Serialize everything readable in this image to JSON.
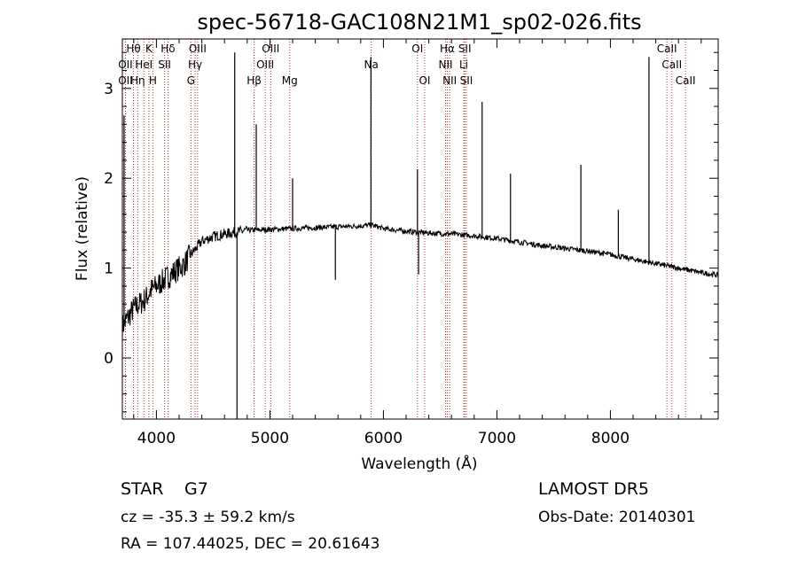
{
  "chart_data": {
    "type": "line",
    "title": "spec-56718-GAC108N21M1_sp02-026.fits",
    "xlabel": "Wavelength (Å)",
    "ylabel": "Flux (relative)",
    "xlim": [
      3700,
      8950
    ],
    "ylim": [
      -0.68,
      3.55
    ],
    "xticks": [
      4000,
      5000,
      6000,
      7000,
      8000
    ],
    "xtick_labels": [
      "4000",
      "5000",
      "6000",
      "7000",
      "8000"
    ],
    "yticks": [
      0,
      1,
      2,
      3
    ],
    "ytick_labels": [
      "0",
      "1",
      "2",
      "3"
    ],
    "grid": false,
    "legend": "none",
    "colors": {
      "spectrum": "#000000",
      "lines": "#b03030"
    },
    "spectral_lines": [
      {
        "label": "OII",
        "wave": 3727,
        "row": 2
      },
      {
        "label": "Hθ",
        "wave": 3798,
        "row": 0
      },
      {
        "label": "OII",
        "wave": 3727,
        "row": 1
      },
      {
        "label": "Hη",
        "wave": 3835,
        "row": 2
      },
      {
        "label": "HeI",
        "wave": 3889,
        "row": 1
      },
      {
        "label": "K",
        "wave": 3934,
        "row": 0
      },
      {
        "label": "H",
        "wave": 3969,
        "row": 2
      },
      {
        "label": "Hδ",
        "wave": 4102,
        "row": 0
      },
      {
        "label": "SII",
        "wave": 4072,
        "row": 1
      },
      {
        "label": "OIII",
        "wave": 4363,
        "row": 0
      },
      {
        "label": "Hγ",
        "wave": 4341,
        "row": 1
      },
      {
        "label": "G",
        "wave": 4305,
        "row": 2
      },
      {
        "label": "Hβ",
        "wave": 4861,
        "row": 2
      },
      {
        "label": "OIII",
        "wave": 4959,
        "row": 1
      },
      {
        "label": "OIII",
        "wave": 5007,
        "row": 0
      },
      {
        "label": "Mg",
        "wave": 5175,
        "row": 2
      },
      {
        "label": "Na",
        "wave": 5893,
        "row": 1
      },
      {
        "label": "OI",
        "wave": 6300,
        "row": 0
      },
      {
        "label": "OI",
        "wave": 6364,
        "row": 2
      },
      {
        "label": "Hα",
        "wave": 6563,
        "row": 0
      },
      {
        "label": "NII",
        "wave": 6548,
        "row": 1
      },
      {
        "label": "NII",
        "wave": 6584,
        "row": 2
      },
      {
        "label": "SII",
        "wave": 6717,
        "row": 0
      },
      {
        "label": "Li",
        "wave": 6708,
        "row": 1
      },
      {
        "label": "SII",
        "wave": 6731,
        "row": 2
      },
      {
        "label": "CaII",
        "wave": 8498,
        "row": 0
      },
      {
        "label": "CaII",
        "wave": 8542,
        "row": 1
      },
      {
        "label": "CaII",
        "wave": 8662,
        "row": 2
      }
    ],
    "continuum_points": [
      [
        3700,
        0.35
      ],
      [
        3750,
        0.45
      ],
      [
        3800,
        0.55
      ],
      [
        3850,
        0.6
      ],
      [
        3900,
        0.65
      ],
      [
        3950,
        0.75
      ],
      [
        4000,
        0.8
      ],
      [
        4050,
        0.85
      ],
      [
        4100,
        0.9
      ],
      [
        4150,
        0.95
      ],
      [
        4200,
        1.0
      ],
      [
        4250,
        1.05
      ],
      [
        4300,
        1.15
      ],
      [
        4350,
        1.22
      ],
      [
        4400,
        1.3
      ],
      [
        4500,
        1.35
      ],
      [
        4600,
        1.38
      ],
      [
        4700,
        1.4
      ],
      [
        4800,
        1.42
      ],
      [
        5000,
        1.43
      ],
      [
        5200,
        1.44
      ],
      [
        5400,
        1.45
      ],
      [
        5600,
        1.46
      ],
      [
        5800,
        1.47
      ],
      [
        5900,
        1.48
      ],
      [
        6000,
        1.44
      ],
      [
        6200,
        1.41
      ],
      [
        6400,
        1.39
      ],
      [
        6600,
        1.38
      ],
      [
        6800,
        1.36
      ],
      [
        7000,
        1.33
      ],
      [
        7200,
        1.29
      ],
      [
        7400,
        1.25
      ],
      [
        7600,
        1.22
      ],
      [
        7800,
        1.19
      ],
      [
        8000,
        1.15
      ],
      [
        8200,
        1.1
      ],
      [
        8400,
        1.05
      ],
      [
        8600,
        1.0
      ],
      [
        8800,
        0.95
      ],
      [
        8950,
        0.92
      ]
    ],
    "sharp_features": [
      {
        "wave": 3715,
        "peak": 2.7
      },
      {
        "wave": 4690,
        "peak": 3.4
      },
      {
        "wave": 4710,
        "peak": -0.75
      },
      {
        "wave": 4880,
        "peak": 2.6
      },
      {
        "wave": 5200,
        "peak": 2.0
      },
      {
        "wave": 5577,
        "peak": 0.87
      },
      {
        "wave": 5890,
        "peak": 3.35
      },
      {
        "wave": 6300,
        "peak": 2.1
      },
      {
        "wave": 6310,
        "peak": 0.93
      },
      {
        "wave": 6870,
        "peak": 2.85
      },
      {
        "wave": 7120,
        "peak": 2.05
      },
      {
        "wave": 7740,
        "peak": 2.15
      },
      {
        "wave": 8070,
        "peak": 1.65
      },
      {
        "wave": 8340,
        "peak": 3.35
      }
    ]
  },
  "info": {
    "class": "STAR",
    "subclass": "G7",
    "survey": "LAMOST DR5",
    "cz": "cz = -35.3 ± 59.2 km/s",
    "obs_date": "Obs-Date: 20140301",
    "radec": "RA = 107.44025, DEC =  20.61643"
  }
}
